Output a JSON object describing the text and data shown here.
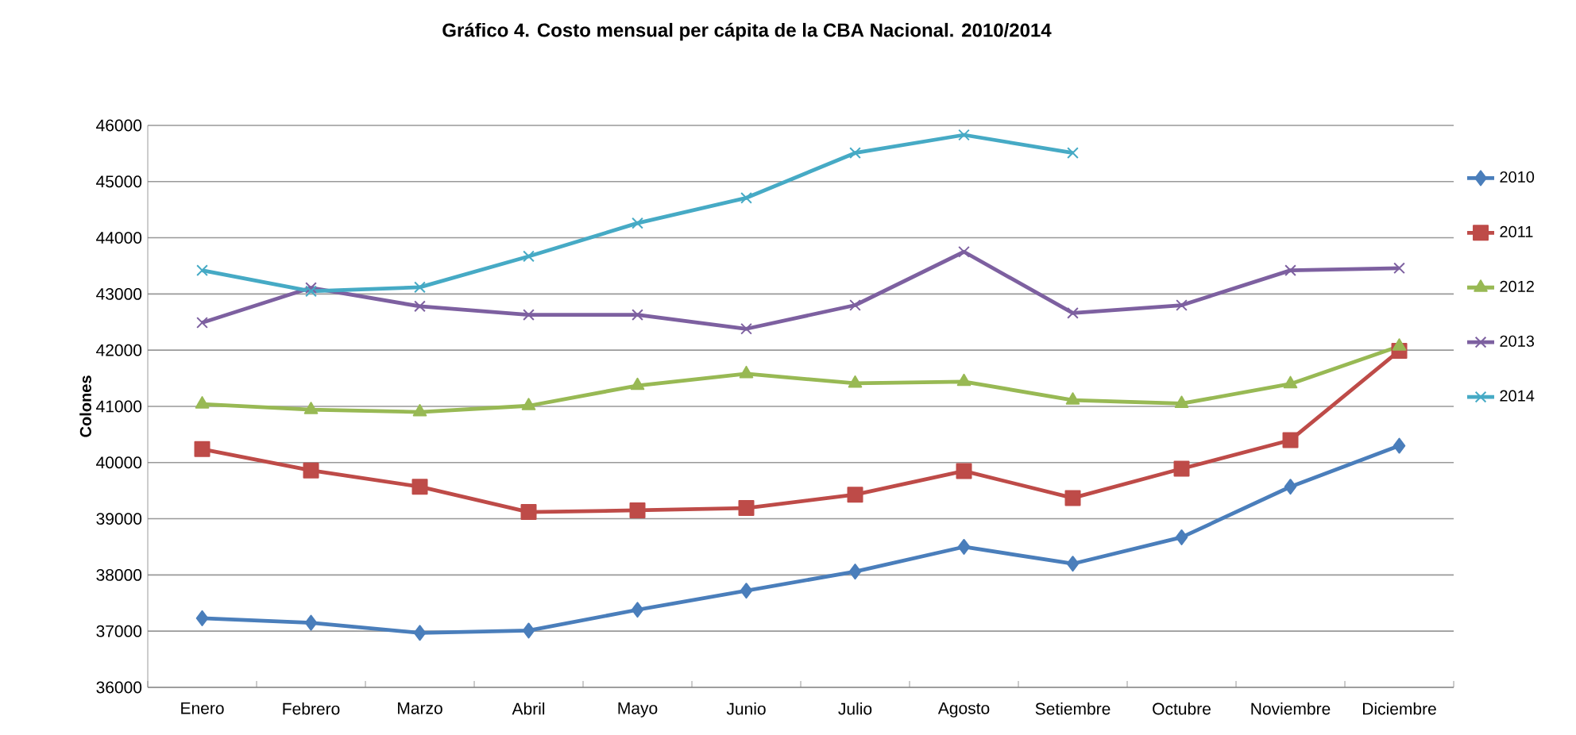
{
  "chart_data": {
    "type": "line",
    "title": "Gráfico 4. Costo mensual per cápita de la CBA Nacional. 2010/2014",
    "ylabel": "Colones",
    "categories": [
      "Enero",
      "Febrero",
      "Marzo",
      "Abril",
      "Mayo",
      "Junio",
      "Julio",
      "Agosto",
      "Setiembre",
      "Octubre",
      "Noviembre",
      "Diciembre"
    ],
    "series": [
      {
        "name": "2010",
        "color": "#4a7ebb",
        "marker": "diamond",
        "values": [
          37230,
          37150,
          36970,
          37010,
          37380,
          37720,
          38060,
          38500,
          38200,
          38670,
          39570,
          40300
        ]
      },
      {
        "name": "2011",
        "color": "#be4b48",
        "marker": "square",
        "values": [
          40240,
          39860,
          39570,
          39120,
          39150,
          39190,
          39430,
          39850,
          39370,
          39890,
          40400,
          41990
        ]
      },
      {
        "name": "2012",
        "color": "#98b954",
        "marker": "triangle",
        "values": [
          41040,
          40940,
          40900,
          41010,
          41370,
          41580,
          41410,
          41440,
          41110,
          41050,
          41400,
          42070
        ]
      },
      {
        "name": "2013",
        "color": "#7d60a0",
        "marker": "cross",
        "values": [
          42490,
          43110,
          42780,
          42630,
          42630,
          42380,
          42800,
          43750,
          42660,
          42800,
          43420,
          43460
        ]
      },
      {
        "name": "2014",
        "color": "#46aac5",
        "marker": "cross",
        "values": [
          43420,
          43050,
          43120,
          43670,
          44260,
          44710,
          45510,
          45830,
          45510,
          null,
          null,
          null
        ]
      }
    ],
    "ylim": [
      36000,
      46000
    ],
    "yticks": [
      36000,
      37000,
      38000,
      39000,
      40000,
      41000,
      42000,
      43000,
      44000,
      45000,
      46000
    ],
    "grid": "y",
    "legend": "right",
    "line_style": "solid"
  }
}
